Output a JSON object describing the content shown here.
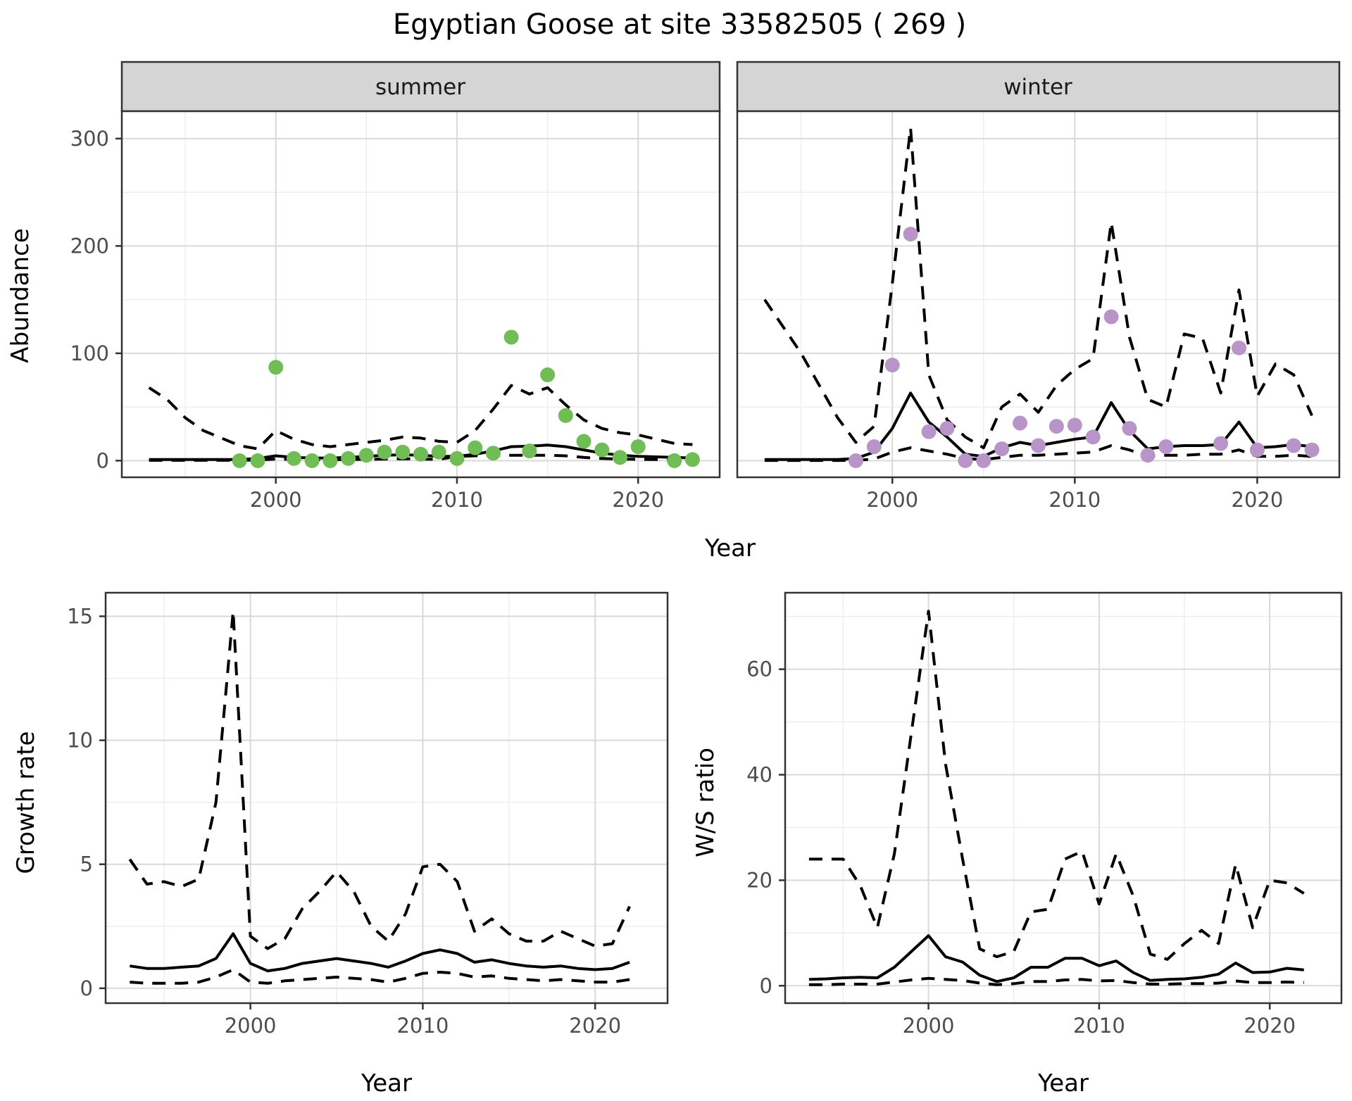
{
  "title": "Egyptian Goose at site 33582505 ( 269 )",
  "colors": {
    "background": "#ffffff",
    "panel_bg": "#ffffff",
    "grid_major": "#d9d9d9",
    "grid_minor": "#ededed",
    "panel_border": "#333333",
    "strip_bg": "#d5d5d5",
    "line": "#000000",
    "summer_point": "#70bc55",
    "winter_point": "#b894c8",
    "tick_text": "#4d4d4d"
  },
  "labels": {
    "y_top": "Abundance",
    "x_top": "Year",
    "y_bottom_left": "Growth rate",
    "x_bottom_left": "Year",
    "y_bottom_right": "W/S ratio",
    "x_bottom_right": "Year"
  },
  "chart_data": [
    {
      "id": "abundance-summer",
      "type": "line",
      "facet_label": "summer",
      "ylabel": "Abundance",
      "xlabel": "Year",
      "xlim": [
        1991.5,
        2024.5
      ],
      "ylim": [
        -15.5,
        325.5
      ],
      "x_major": [
        2000,
        2010,
        2020
      ],
      "x_minor": [
        1995,
        2005,
        2015
      ],
      "y_major": [
        0,
        100,
        200,
        300
      ],
      "y_minor": [
        50,
        150,
        250
      ],
      "draw_y_labels": true,
      "years": [
        1993,
        1994,
        1995,
        1996,
        1997,
        1998,
        1999,
        2000,
        2001,
        2002,
        2003,
        2004,
        2005,
        2006,
        2007,
        2008,
        2009,
        2010,
        2011,
        2012,
        2013,
        2014,
        2015,
        2016,
        2017,
        2018,
        2019,
        2020,
        2021,
        2022,
        2023
      ],
      "series": [
        {
          "name": "upper95",
          "style": "dashed",
          "values": [
            68,
            57,
            40,
            28,
            21,
            14,
            11,
            28,
            20,
            15,
            13,
            15,
            17,
            19,
            22,
            21,
            18,
            17,
            28,
            48,
            70,
            62,
            68,
            52,
            38,
            30,
            26,
            24,
            20,
            16,
            15
          ]
        },
        {
          "name": "lower95",
          "style": "dashed",
          "values": [
            0.3,
            0.3,
            0.3,
            0.3,
            0.3,
            0.3,
            0.5,
            1.5,
            1,
            0.8,
            0.8,
            1,
            1.2,
            1.5,
            1.8,
            1.5,
            1.2,
            4,
            4.5,
            5,
            5,
            5,
            5,
            4.5,
            3,
            2,
            1.5,
            1.2,
            1,
            0.8,
            2
          ]
        },
        {
          "name": "fit",
          "style": "solid",
          "values": [
            1,
            1,
            1,
            1,
            1,
            1,
            2,
            4.5,
            3,
            2.5,
            2.5,
            3,
            4,
            5,
            5.5,
            5,
            4,
            4,
            6,
            9,
            13,
            13.5,
            14.5,
            13,
            10,
            7,
            5,
            4,
            3.5,
            3,
            2.5
          ]
        }
      ],
      "points": {
        "color_key": "summer_point",
        "years": [
          1998,
          1999,
          2000,
          2001,
          2002,
          2003,
          2004,
          2005,
          2006,
          2007,
          2008,
          2009,
          2010,
          2011,
          2012,
          2013,
          2014,
          2015,
          2016,
          2017,
          2018,
          2019,
          2020,
          2022,
          2023
        ],
        "values": [
          0,
          0,
          87,
          2,
          0,
          0,
          2,
          5,
          8,
          8,
          6,
          8,
          2,
          12,
          7,
          115,
          9,
          80,
          42,
          18,
          10,
          3,
          13,
          0,
          1
        ]
      }
    },
    {
      "id": "abundance-winter",
      "type": "line",
      "facet_label": "winter",
      "ylabel": "Abundance",
      "xlabel": "Year",
      "xlim": [
        1991.5,
        2024.5
      ],
      "ylim": [
        -15.5,
        325.5
      ],
      "x_major": [
        2000,
        2010,
        2020
      ],
      "x_minor": [
        1995,
        2005,
        2015
      ],
      "y_major": [
        0,
        100,
        200,
        300
      ],
      "y_minor": [
        50,
        150,
        250
      ],
      "draw_y_labels": false,
      "years": [
        1993,
        1994,
        1995,
        1996,
        1997,
        1998,
        1999,
        2000,
        2001,
        2002,
        2003,
        2004,
        2005,
        2006,
        2007,
        2008,
        2009,
        2010,
        2011,
        2012,
        2013,
        2014,
        2015,
        2016,
        2017,
        2018,
        2019,
        2020,
        2021,
        2022,
        2023
      ],
      "series": [
        {
          "name": "upper95",
          "style": "dashed",
          "values": [
            150,
            125,
            100,
            70,
            40,
            17,
            32,
            165,
            310,
            80,
            38,
            22,
            12,
            50,
            62,
            45,
            70,
            85,
            95,
            222,
            115,
            57,
            50,
            118,
            114,
            63,
            159,
            60,
            90,
            80,
            42
          ]
        },
        {
          "name": "lower95",
          "style": "dashed",
          "values": [
            0.2,
            0.2,
            0.2,
            0.2,
            0.2,
            0.3,
            1.5,
            8,
            12,
            9,
            6,
            2,
            1,
            3,
            5,
            5,
            6,
            7,
            8,
            14,
            10,
            4,
            5,
            5,
            6,
            6,
            10,
            4,
            4,
            5,
            4
          ]
        },
        {
          "name": "fit",
          "style": "solid",
          "values": [
            1,
            1,
            1,
            1,
            1,
            2,
            8,
            30,
            63,
            36,
            22,
            6,
            4,
            12,
            17,
            14,
            17,
            20,
            22,
            54,
            28,
            11,
            13,
            14,
            14,
            15,
            36,
            12,
            13,
            15,
            13
          ]
        }
      ],
      "points": {
        "color_key": "winter_point",
        "years": [
          1998,
          1999,
          2000,
          2001,
          2002,
          2003,
          2004,
          2005,
          2006,
          2007,
          2008,
          2009,
          2010,
          2011,
          2012,
          2013,
          2014,
          2015,
          2018,
          2019,
          2020,
          2022,
          2023
        ],
        "values": [
          0,
          13,
          89,
          211,
          27,
          30,
          0,
          0,
          11,
          35,
          14,
          32,
          33,
          22,
          134,
          30,
          5,
          13,
          16,
          105,
          10,
          14,
          10
        ]
      }
    },
    {
      "id": "growth-rate",
      "type": "line",
      "facet_label": null,
      "ylabel": "Growth rate",
      "xlabel": "Year",
      "xlim": [
        1991.6,
        2024.2
      ],
      "ylim": [
        -0.6,
        15.95
      ],
      "x_major": [
        2000,
        2010,
        2020
      ],
      "x_minor": [
        1995,
        2005,
        2015
      ],
      "y_major": [
        0,
        5,
        10,
        15
      ],
      "y_minor": [
        2.5,
        7.5,
        12.5
      ],
      "draw_y_labels": true,
      "years": [
        1993,
        1994,
        1995,
        1996,
        1997,
        1998,
        1999,
        2000,
        2001,
        2002,
        2003,
        2004,
        2005,
        2006,
        2007,
        2008,
        2009,
        2010,
        2011,
        2012,
        2013,
        2014,
        2015,
        2016,
        2017,
        2018,
        2019,
        2020,
        2021,
        2022
      ],
      "series": [
        {
          "name": "upper95",
          "style": "dashed",
          "values": [
            5.2,
            4.2,
            4.3,
            4.1,
            4.4,
            7.5,
            15.2,
            2.1,
            1.6,
            2.0,
            3.2,
            3.9,
            4.7,
            3.9,
            2.5,
            1.9,
            3.0,
            4.9,
            5.0,
            4.3,
            2.3,
            2.8,
            2.2,
            1.9,
            1.9,
            2.3,
            2.0,
            1.7,
            1.8,
            3.3
          ]
        },
        {
          "name": "lower95",
          "style": "dashed",
          "values": [
            0.25,
            0.2,
            0.2,
            0.2,
            0.25,
            0.45,
            0.75,
            0.25,
            0.2,
            0.3,
            0.35,
            0.4,
            0.45,
            0.4,
            0.35,
            0.25,
            0.4,
            0.6,
            0.65,
            0.6,
            0.45,
            0.5,
            0.4,
            0.35,
            0.3,
            0.35,
            0.3,
            0.25,
            0.25,
            0.35
          ]
        },
        {
          "name": "fit",
          "style": "solid",
          "values": [
            0.9,
            0.8,
            0.8,
            0.85,
            0.9,
            1.2,
            2.2,
            1.0,
            0.7,
            0.8,
            1.0,
            1.1,
            1.2,
            1.1,
            1.0,
            0.85,
            1.1,
            1.4,
            1.55,
            1.4,
            1.05,
            1.15,
            1.0,
            0.9,
            0.85,
            0.9,
            0.8,
            0.75,
            0.8,
            1.05
          ]
        }
      ],
      "points": null
    },
    {
      "id": "ws-ratio",
      "type": "line",
      "facet_label": null,
      "ylabel": "W/S ratio",
      "xlabel": "Year",
      "xlim": [
        1991.6,
        2024.2
      ],
      "ylim": [
        -3.3,
        74.5
      ],
      "x_major": [
        2000,
        2010,
        2020
      ],
      "x_minor": [
        1995,
        2005,
        2015
      ],
      "y_major": [
        0,
        20,
        40,
        60
      ],
      "y_minor": [
        10,
        30,
        50,
        70
      ],
      "draw_y_labels": true,
      "years": [
        1993,
        1994,
        1995,
        1996,
        1997,
        1998,
        1999,
        2000,
        2001,
        2002,
        2003,
        2004,
        2005,
        2006,
        2007,
        2008,
        2009,
        2010,
        2011,
        2012,
        2013,
        2014,
        2015,
        2016,
        2017,
        2018,
        2019,
        2020,
        2021,
        2022
      ],
      "series": [
        {
          "name": "upper95",
          "style": "dashed",
          "values": [
            24,
            24,
            24,
            19,
            11,
            25,
            48,
            71,
            42,
            24,
            7,
            5.5,
            6.5,
            14,
            14.5,
            24,
            25.5,
            15.5,
            25,
            17,
            6,
            5,
            8,
            10.5,
            8,
            23,
            11,
            20,
            19.5,
            17.5
          ]
        },
        {
          "name": "lower95",
          "style": "dashed",
          "values": [
            0.2,
            0.2,
            0.3,
            0.3,
            0.3,
            0.7,
            1.1,
            1.4,
            1.2,
            1.0,
            0.5,
            0.2,
            0.4,
            0.8,
            0.8,
            1.1,
            1.2,
            0.9,
            1.0,
            0.6,
            0.3,
            0.3,
            0.4,
            0.4,
            0.5,
            0.9,
            0.6,
            0.6,
            0.7,
            0.6
          ]
        },
        {
          "name": "fit",
          "style": "solid",
          "values": [
            1.2,
            1.3,
            1.5,
            1.6,
            1.5,
            3.5,
            6.5,
            9.5,
            5.5,
            4.5,
            2.0,
            0.8,
            1.5,
            3.5,
            3.5,
            5.2,
            5.2,
            3.8,
            4.7,
            2.5,
            1.0,
            1.2,
            1.3,
            1.6,
            2.2,
            4.3,
            2.5,
            2.6,
            3.3,
            3.0
          ]
        }
      ],
      "points": null
    }
  ]
}
